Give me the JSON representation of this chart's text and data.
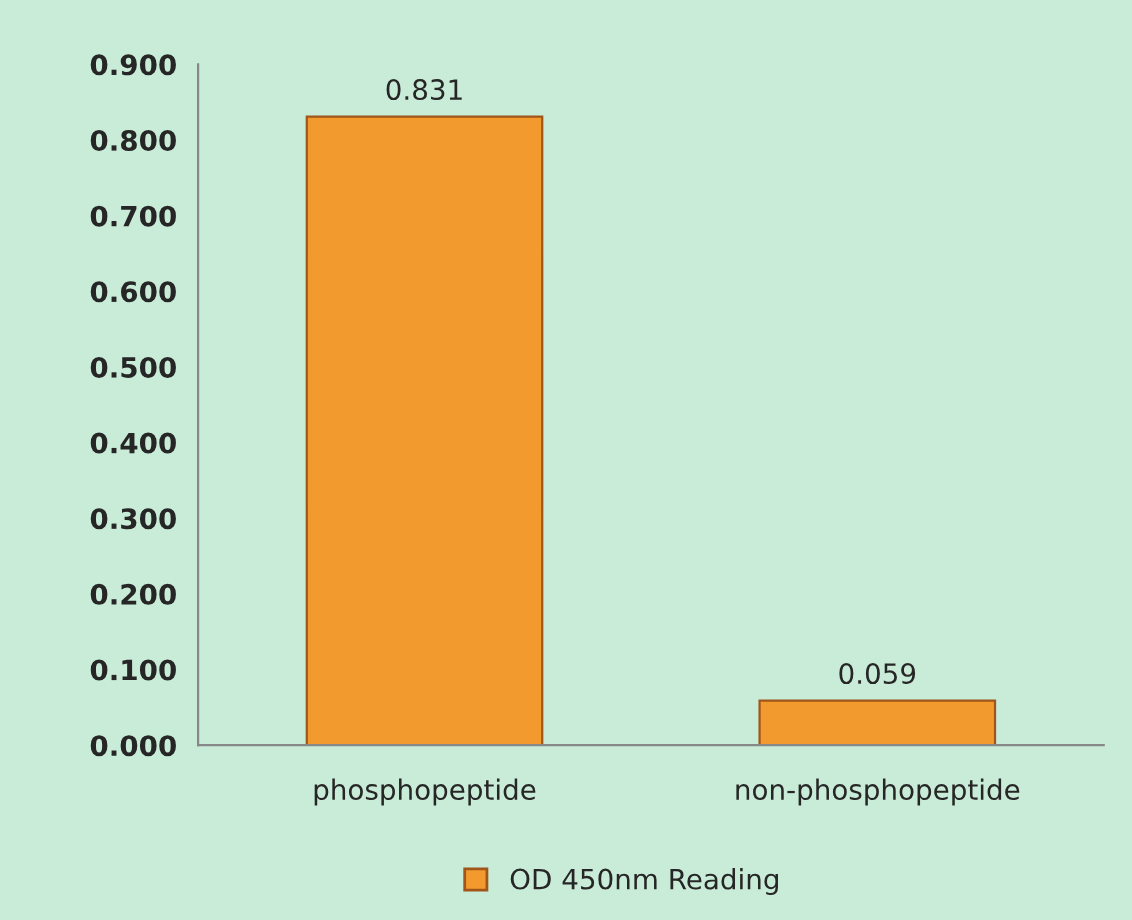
{
  "chart_data": {
    "type": "bar",
    "categories": [
      "phosphopeptide",
      "non-phosphopeptide"
    ],
    "series": [
      {
        "name": "OD 450nm Reading",
        "color": "#f39a2e",
        "values": [
          0.831,
          0.059
        ]
      }
    ],
    "ylim": [
      0,
      0.9
    ],
    "yticks": [
      {
        "value": 0,
        "label": "0.000"
      },
      {
        "value": 0.1,
        "label": "0.100"
      },
      {
        "value": 0.2,
        "label": "0.200"
      },
      {
        "value": 0.3,
        "label": "0.300"
      },
      {
        "value": 0.4,
        "label": "0.400"
      },
      {
        "value": 0.5,
        "label": "0.500"
      },
      {
        "value": 0.6,
        "label": "0.600"
      },
      {
        "value": 0.7,
        "label": "0.700"
      },
      {
        "value": 0.8,
        "label": "0.800"
      },
      {
        "value": 0.9,
        "label": "0.900"
      }
    ],
    "data_labels": true,
    "grid": false,
    "legend": "bottom"
  }
}
